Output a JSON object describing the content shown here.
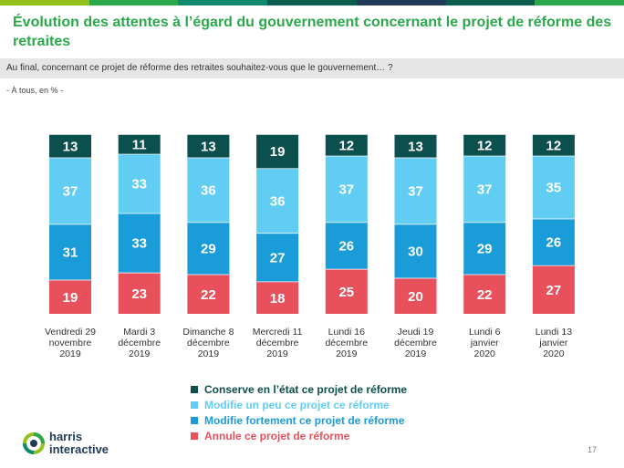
{
  "top_bar_colors": [
    "#95c11f",
    "#2aa84a",
    "#0e8a6e",
    "#0b5e4e",
    "#1f3b57",
    "#0b5e4e",
    "#2aa84a"
  ],
  "title": "Évolution des attentes à l’égard du gouvernement concernant le projet de réforme des retraites",
  "question": "Au final, concernant ce projet de réforme des retraites souhaitez-vous que le gouvernement… ?",
  "base": "- À tous, en % -",
  "chart_data": {
    "type": "bar",
    "stacked": true,
    "categories": [
      [
        "Vendredi 29",
        "novembre",
        "2019"
      ],
      [
        "Mardi 3",
        "décembre",
        "2019"
      ],
      [
        "Dimanche 8",
        "décembre",
        "2019"
      ],
      [
        "Mercredi 11",
        "décembre",
        "2019"
      ],
      [
        "Lundi 16",
        "décembre",
        "2019"
      ],
      [
        "Jeudi 19",
        "décembre",
        "2019"
      ],
      [
        "Lundi 6",
        "janvier",
        "2020"
      ],
      [
        "Lundi 13",
        "janvier",
        "2020"
      ]
    ],
    "series": [
      {
        "name": "Annule ce projet de réforme",
        "color": "#e8505b",
        "values": [
          19,
          23,
          22,
          18,
          25,
          20,
          22,
          27
        ]
      },
      {
        "name": "Modifie fortement ce projet de réforme",
        "color": "#1a9cd8",
        "values": [
          31,
          33,
          29,
          27,
          26,
          30,
          29,
          26
        ]
      },
      {
        "name": "Modifie un peu ce projet ce réforme",
        "color": "#62cdf3",
        "values": [
          37,
          33,
          36,
          36,
          37,
          37,
          37,
          35
        ]
      },
      {
        "name": "Conserve en l’état ce projet de réforme",
        "color": "#0b4f4f",
        "values": [
          13,
          11,
          13,
          19,
          12,
          13,
          12,
          12
        ]
      }
    ],
    "legend_order": [
      3,
      2,
      1,
      0
    ],
    "unit": "%",
    "ylim": [
      0,
      100
    ],
    "legend_position": "bottom-center"
  },
  "logo": {
    "line1": "harris",
    "line2": "interactive"
  },
  "page_number": "17"
}
